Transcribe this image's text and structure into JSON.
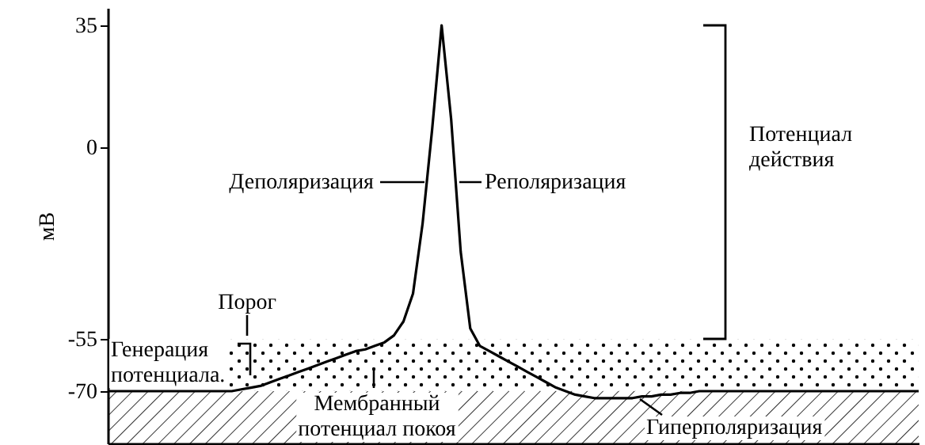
{
  "chart_data": {
    "type": "line",
    "ylabel": "мВ",
    "categories": [
      null,
      null,
      null,
      null,
      null,
      null,
      null,
      null,
      null,
      null,
      null,
      null,
      null,
      null,
      null,
      null,
      null,
      null,
      null,
      null,
      null,
      null,
      null,
      null,
      null,
      null,
      null,
      null,
      null,
      null,
      null,
      null,
      null,
      null,
      null,
      null,
      null,
      null,
      null,
      null,
      null,
      null,
      null,
      null,
      null,
      null,
      null,
      null,
      null,
      null,
      null,
      null,
      null,
      null,
      null,
      null,
      null,
      null,
      null,
      null,
      null,
      null,
      null,
      null,
      null,
      null,
      null,
      null,
      null,
      null,
      null,
      null,
      null,
      null,
      null,
      null,
      null,
      null,
      null,
      null,
      null,
      null,
      null,
      null,
      null,
      null
    ],
    "series": [
      {
        "color": "#000000",
        "values": [
          -70,
          -70,
          -70,
          -70,
          -70,
          -70,
          -70,
          -70,
          -70,
          -70,
          -70,
          -70,
          -70,
          -70,
          -69.5,
          -69,
          -68.5,
          -67.5,
          -66.5,
          -65.5,
          -64.5,
          -63.5,
          -62.5,
          -61.5,
          -60.5,
          -59.5,
          -58.5,
          -58,
          -57,
          -56,
          -54,
          -50,
          -42,
          -22,
          5,
          35,
          8,
          -30,
          -52,
          -57,
          -58.5,
          -60,
          -61.5,
          -63,
          -64.5,
          -66,
          -67.5,
          -69,
          -70,
          -71,
          -71.5,
          -72,
          -72,
          -72,
          -72,
          -72,
          -71.5,
          -71.5,
          -71,
          -71,
          -70.5,
          -70.5,
          -70,
          -70,
          -70,
          -70,
          -70,
          -70,
          -70,
          -70,
          -70,
          -70,
          -70,
          -70,
          -70,
          -70,
          -70,
          -70,
          -70,
          -70,
          -70,
          -70,
          -70,
          -70,
          -70,
          -70
        ]
      }
    ],
    "ylim": [
      -85,
      40
    ],
    "yticks": [
      35,
      0,
      -55,
      -70
    ],
    "tick_labels": "y",
    "bands": [
      {
        "axis": "y",
        "from": -70,
        "to": -55
      },
      {
        "axis": "y",
        "from": -85,
        "to": -70
      }
    ],
    "annotations": [
      "Деполяризация",
      "Реполяризация",
      "Потенциал действия",
      "Порог",
      "Генерация потенциала.",
      "Мембранный потенциал покоя",
      "Гиперполяризация"
    ]
  }
}
